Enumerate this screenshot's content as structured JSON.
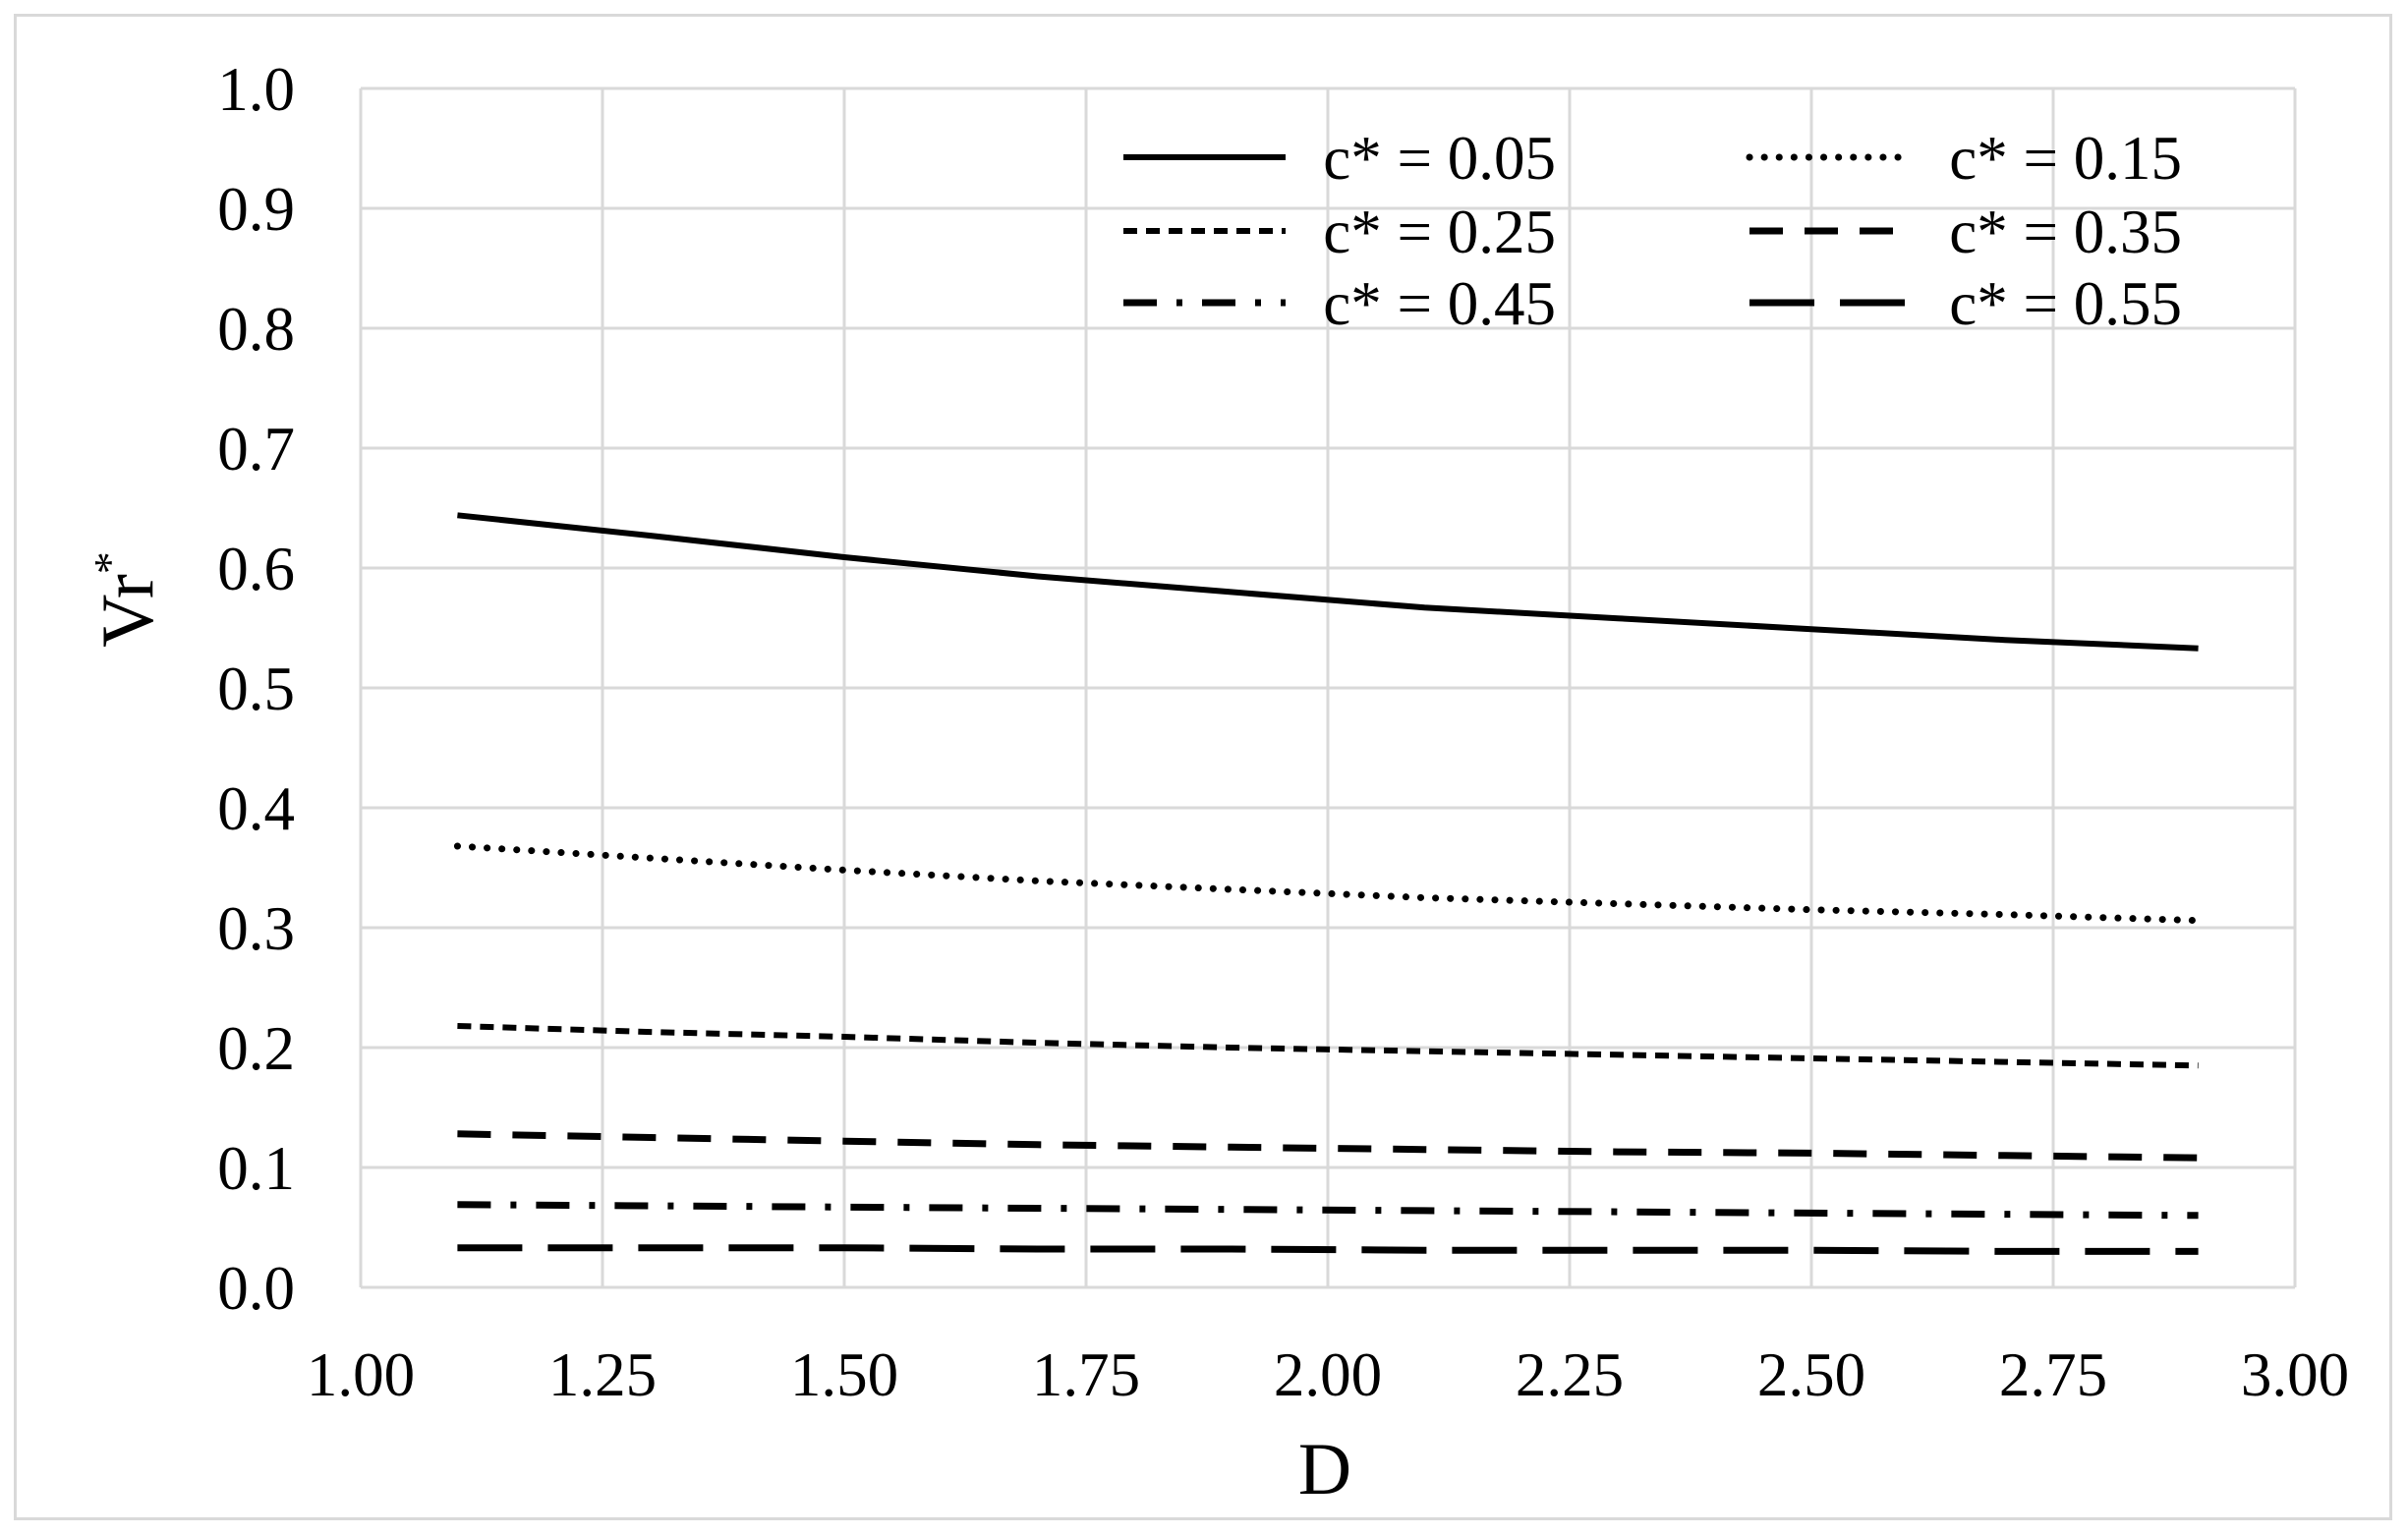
{
  "chart_data": {
    "type": "line",
    "title": "",
    "xlabel": "D",
    "ylabel": "Vr",
    "ylabel_superscript": "*",
    "xlim": [
      1.0,
      3.0
    ],
    "ylim": [
      0.0,
      1.0
    ],
    "xticks": [
      1.0,
      1.25,
      1.5,
      1.75,
      2.0,
      2.25,
      2.5,
      2.75,
      3.0
    ],
    "xtick_labels": [
      "1.00",
      "1.25",
      "1.50",
      "1.75",
      "2.00",
      "2.25",
      "2.50",
      "2.75",
      "3.00"
    ],
    "yticks": [
      0.0,
      0.1,
      0.2,
      0.3,
      0.4,
      0.5,
      0.6,
      0.7,
      0.8,
      0.9,
      1.0
    ],
    "ytick_labels": [
      "0.0",
      "0.1",
      "0.2",
      "0.3",
      "0.4",
      "0.5",
      "0.6",
      "0.7",
      "0.8",
      "0.9",
      "1.0"
    ],
    "grid": true,
    "legend_position": "top-right, inside plot, 3 rows x 2 columns",
    "x": [
      1.1,
      1.3,
      1.5,
      1.7,
      1.9,
      2.1,
      2.3,
      2.5,
      2.7,
      2.9
    ],
    "series": [
      {
        "name": "c* = 0.05",
        "style": "solid",
        "values": [
          0.644,
          0.627,
          0.609,
          0.593,
          0.58,
          0.567,
          0.558,
          0.549,
          0.54,
          0.533
        ]
      },
      {
        "name": "c* = 0.15",
        "style": "dotted",
        "values": [
          0.368,
          0.358,
          0.348,
          0.339,
          0.332,
          0.325,
          0.32,
          0.315,
          0.311,
          0.306
        ]
      },
      {
        "name": "c* = 0.25",
        "style": "short-dash",
        "values": [
          0.218,
          0.213,
          0.209,
          0.204,
          0.2,
          0.197,
          0.194,
          0.191,
          0.188,
          0.185
        ]
      },
      {
        "name": "c* = 0.35",
        "style": "dash",
        "values": [
          0.128,
          0.125,
          0.122,
          0.119,
          0.117,
          0.115,
          0.113,
          0.112,
          0.11,
          0.108
        ]
      },
      {
        "name": "c* = 0.45",
        "style": "dash-dot",
        "values": [
          0.069,
          0.068,
          0.067,
          0.066,
          0.065,
          0.064,
          0.063,
          0.062,
          0.061,
          0.06
        ]
      },
      {
        "name": "c* = 0.55",
        "style": "long-dash",
        "values": [
          0.033,
          0.033,
          0.033,
          0.032,
          0.032,
          0.031,
          0.031,
          0.031,
          0.03,
          0.03
        ]
      }
    ],
    "colors": {
      "line": "#000000",
      "grid": "#d9d9d9",
      "frame": "#d9d9d9"
    }
  }
}
